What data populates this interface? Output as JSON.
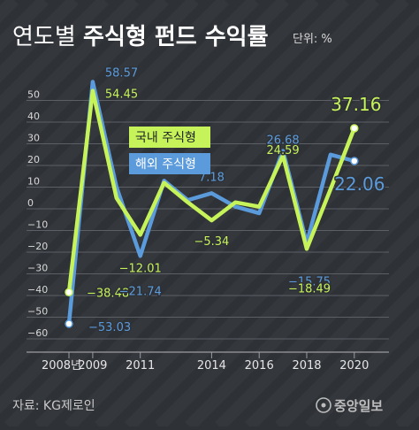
{
  "title": "연도별 주식형 펀드 수익률",
  "title_light": "연도별 ",
  "title_bold": "주식형 펀드 수익률",
  "unit": "단위: %",
  "source": "자료: KG제로인",
  "publisher": "중앙일보",
  "colors": {
    "background": "#2e3136",
    "domestic": "#c6f25a",
    "overseas": "#5b9bdc",
    "grid": "#5c6066",
    "text": "#d8d8d8"
  },
  "chart_data": {
    "type": "line",
    "x": [
      2008,
      2009,
      2010,
      2011,
      2012,
      2013,
      2014,
      2015,
      2016,
      2017,
      2018,
      2019,
      2020
    ],
    "x_tick_labels": [
      {
        "x": 2008,
        "label": "2008년"
      },
      {
        "x": 2009,
        "label": "2009"
      },
      {
        "x": 2011,
        "label": "2011"
      },
      {
        "x": 2014,
        "label": "2014"
      },
      {
        "x": 2016,
        "label": "2016"
      },
      {
        "x": 2018,
        "label": "2018"
      },
      {
        "x": 2020,
        "label": "2020"
      }
    ],
    "y_ticks": [
      {
        "value": 50,
        "label": "50"
      },
      {
        "value": 40,
        "label": "40"
      },
      {
        "value": 30,
        "label": "30"
      },
      {
        "value": 20,
        "label": "20"
      },
      {
        "value": 10,
        "label": "10"
      },
      {
        "value": 0,
        "label": "0"
      },
      {
        "value": -10,
        "label": "−10"
      },
      {
        "value": -20,
        "label": "−20"
      },
      {
        "value": -30,
        "label": "−30"
      },
      {
        "value": -40,
        "label": "−40"
      },
      {
        "value": -50,
        "label": "−50"
      },
      {
        "value": -60,
        "label": "−60"
      }
    ],
    "ylim": [
      -60,
      60
    ],
    "grid": "horizontal",
    "series": [
      {
        "name": "국내 주식형",
        "color": "#c6f25a",
        "values": [
          -38.48,
          54.45,
          5,
          -12.01,
          12,
          3,
          -5.34,
          3,
          1,
          24.59,
          -18.49,
          9,
          37.16
        ]
      },
      {
        "name": "해외 주식형",
        "color": "#5b9bdc",
        "values": [
          -53.03,
          58.57,
          10,
          -21.74,
          13,
          4,
          7.18,
          1,
          -2,
          26.68,
          -15.75,
          25,
          22.06
        ]
      }
    ],
    "data_labels": [
      {
        "series": 1,
        "x": 2008,
        "text": "−53.03"
      },
      {
        "series": 0,
        "x": 2008,
        "text": "−38.48"
      },
      {
        "series": 1,
        "x": 2009,
        "text": "58.57"
      },
      {
        "series": 0,
        "x": 2009,
        "text": "54.45"
      },
      {
        "series": 0,
        "x": 2011,
        "text": "−12.01"
      },
      {
        "series": 1,
        "x": 2011,
        "text": "−21.74"
      },
      {
        "series": 1,
        "x": 2014,
        "text": "7.18"
      },
      {
        "series": 0,
        "x": 2014,
        "text": "−5.34"
      },
      {
        "series": 1,
        "x": 2017,
        "text": "26.68"
      },
      {
        "series": 0,
        "x": 2017,
        "text": "24.59"
      },
      {
        "series": 1,
        "x": 2018,
        "text": "−15.75"
      },
      {
        "series": 0,
        "x": 2018,
        "text": "−18.49"
      },
      {
        "series": 0,
        "x": 2020,
        "text": "37.16"
      },
      {
        "series": 1,
        "x": 2020,
        "text": "22.06"
      }
    ],
    "legend": [
      {
        "series": 0,
        "label": "국내 주식형"
      },
      {
        "series": 1,
        "label": "해외 주식형"
      }
    ],
    "legend_placement": "center"
  }
}
